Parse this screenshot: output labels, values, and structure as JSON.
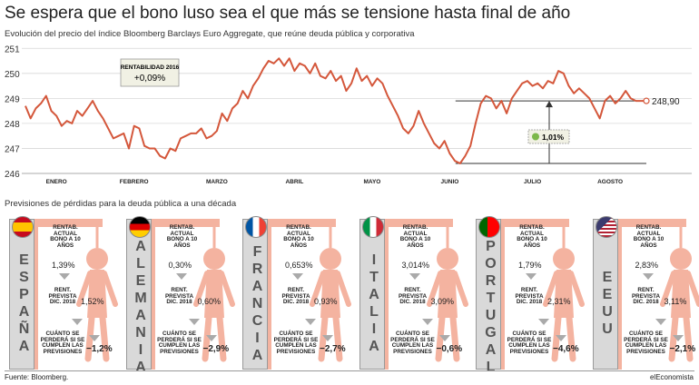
{
  "title": "Se espera que el bono luso sea el que más se tensione hasta final de año",
  "subtitle": "Evolución del precio del índice Bloomberg Barclays Euro Aggregate, que reúne deuda pública y corporativa",
  "chart_data": {
    "type": "line",
    "color": "#d4573b",
    "grid": true,
    "categories": [
      null,
      null,
      null,
      null,
      null,
      null,
      "ENERO",
      null,
      null,
      null,
      null,
      null,
      null,
      null,
      null,
      null,
      null,
      null,
      null,
      null,
      null,
      "FEBRERO",
      null,
      null,
      null,
      null,
      null,
      null,
      null,
      null,
      null,
      null,
      null,
      null,
      null,
      null,
      null,
      "MARZO",
      null,
      null,
      null,
      null,
      null,
      null,
      null,
      null,
      null,
      null,
      null,
      null,
      null,
      null,
      "ABRIL",
      null,
      null,
      null,
      null,
      null,
      null,
      null,
      null,
      null,
      null,
      null,
      null,
      null,
      null,
      "MAYO",
      null,
      null,
      null,
      null,
      null,
      null,
      null,
      null,
      null,
      null,
      null,
      null,
      null,
      null,
      "JUNIO",
      null,
      null,
      null,
      null,
      null,
      null,
      null,
      null,
      null,
      null,
      null,
      null,
      null,
      null,
      null,
      "JULIO",
      null,
      null,
      null,
      null,
      null,
      null,
      null,
      null,
      null,
      null,
      null,
      null,
      null,
      null,
      "AGOSTO",
      null,
      null,
      null,
      null,
      null,
      null,
      null
    ],
    "values": [
      248.7,
      248.2,
      248.6,
      248.8,
      249.1,
      248.5,
      248.3,
      247.9,
      248.1,
      248.0,
      248.5,
      248.3,
      248.6,
      248.9,
      248.5,
      248.2,
      247.8,
      247.4,
      247.5,
      247.6,
      247.0,
      247.9,
      247.8,
      247.1,
      247.0,
      247.0,
      246.7,
      246.6,
      247.0,
      246.9,
      247.4,
      247.5,
      247.6,
      247.6,
      247.8,
      247.4,
      247.5,
      247.7,
      248.4,
      248.1,
      248.6,
      248.8,
      249.3,
      249.0,
      249.5,
      249.8,
      250.2,
      250.5,
      250.4,
      250.6,
      250.3,
      250.6,
      250.1,
      250.4,
      250.3,
      250.0,
      250.4,
      249.9,
      249.8,
      250.1,
      249.7,
      249.9,
      249.3,
      249.6,
      250.2,
      249.7,
      249.9,
      249.5,
      249.8,
      249.6,
      249.1,
      248.7,
      248.3,
      247.8,
      247.6,
      247.9,
      248.5,
      248.0,
      247.6,
      247.2,
      247.0,
      247.3,
      246.8,
      246.5,
      246.4,
      246.7,
      247.1,
      248.0,
      248.8,
      249.1,
      249.0,
      248.6,
      248.9,
      248.4,
      249.0,
      249.3,
      249.6,
      249.7,
      249.5,
      249.6,
      249.4,
      249.7,
      249.6,
      250.1,
      250.0,
      249.5,
      249.2,
      249.4,
      249.2,
      249.0,
      248.6,
      248.2,
      248.9,
      249.1,
      248.8,
      249.0,
      249.3,
      249.0,
      248.9,
      248.9,
      248.9
    ],
    "value_labels": [
      null,
      null,
      null,
      null,
      null,
      null,
      null,
      null,
      null,
      null,
      null,
      null,
      null,
      null,
      null,
      null,
      null,
      null,
      null,
      null,
      null,
      null,
      null,
      null,
      null,
      null,
      null,
      null,
      null,
      null,
      null,
      null,
      null,
      null,
      null,
      null,
      null,
      null,
      null,
      null,
      null,
      null,
      null,
      null,
      null,
      null,
      null,
      null,
      null,
      null,
      null,
      null,
      null,
      null,
      null,
      null,
      null,
      null,
      null,
      null,
      null,
      null,
      null,
      null,
      null,
      null,
      null,
      null,
      null,
      null,
      null,
      null,
      null,
      null,
      null,
      null,
      null,
      null,
      null,
      null,
      null,
      null,
      null,
      null,
      null,
      null,
      null,
      null,
      null,
      null,
      null,
      null,
      null,
      null,
      null,
      null,
      null,
      null,
      null,
      null,
      null,
      null,
      null,
      null,
      null,
      null,
      null,
      null,
      null,
      null,
      null,
      null,
      null,
      null,
      null,
      null,
      null,
      null,
      null,
      null,
      "248,90"
    ],
    "ylim": [
      246,
      251.3
    ],
    "yticks": [
      246,
      247,
      248,
      249,
      250,
      251
    ],
    "annotations": [
      {
        "title": "RENTABILIDAD 2016",
        "text": "+0,09%"
      },
      {
        "text": "1,01%"
      }
    ]
  },
  "panels_title": "Previsiones de pérdidas para la deuda pública a una década",
  "labels": {
    "current": "RENTAB. ACTUAL BONO A 10 AÑOS",
    "forecast": "RENT. PREVISTA DIC. 2018",
    "loss": "CUÁNTO SE PERDERÁ SI SE CUMPLEN LAS PREVISIONES"
  },
  "panels": [
    {
      "country": "ESPAÑA",
      "current": "1,39%",
      "forecast": "1,52%",
      "loss": "−1,2%"
    },
    {
      "country": "ALEMANIA",
      "current": "0,30%",
      "forecast": "0,60%",
      "loss": "−2,9%"
    },
    {
      "country": "FRANCIA",
      "current": "0,653%",
      "forecast": "0,93%",
      "loss": "−2,7%"
    },
    {
      "country": "ITALIA",
      "current": "3,014%",
      "forecast": "3,09%",
      "loss": "−0,6%"
    },
    {
      "country": "PORTUGAL",
      "current": "1,79%",
      "forecast": "2,31%",
      "loss": "−4,6%"
    },
    {
      "country": "EEUU",
      "current": "2,83%",
      "forecast": "3,11%",
      "loss": "−2,1%"
    }
  ],
  "source": "Fuente: Bloomberg.",
  "brand": "elEconomista"
}
